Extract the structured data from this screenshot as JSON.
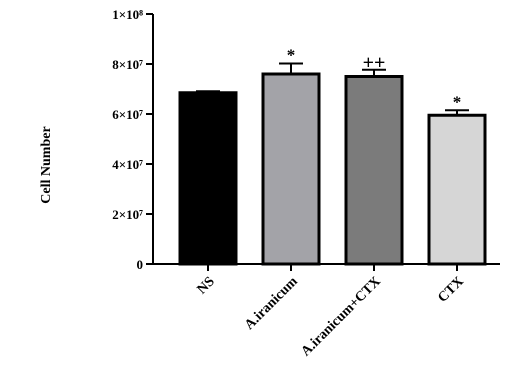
{
  "chart_data": {
    "type": "bar",
    "title": "",
    "xlabel": "",
    "ylabel": "Cell Number",
    "ylim": [
      0,
      100000000
    ],
    "yticks": [
      {
        "value": 0,
        "label": "0"
      },
      {
        "value": 20000000,
        "label": "2×10⁷"
      },
      {
        "value": 40000000,
        "label": "4×10⁷"
      },
      {
        "value": 60000000,
        "label": "6×10⁷"
      },
      {
        "value": 80000000,
        "label": "8×10⁷"
      },
      {
        "value": 100000000,
        "label": "1×10⁸"
      }
    ],
    "categories": [
      "NS",
      "A.iranicum",
      "A.iranicum+CTX",
      "CTX"
    ],
    "values": [
      68500000,
      76000000,
      75000000,
      59500000
    ],
    "errors": [
      600000,
      4200000,
      2700000,
      2000000
    ],
    "annotations": [
      "",
      "*",
      "++",
      "*"
    ],
    "colors": [
      "#000000",
      "#a3a3a8",
      "#7b7b7b",
      "#d6d6d6"
    ],
    "grid": false,
    "legend": "none"
  }
}
